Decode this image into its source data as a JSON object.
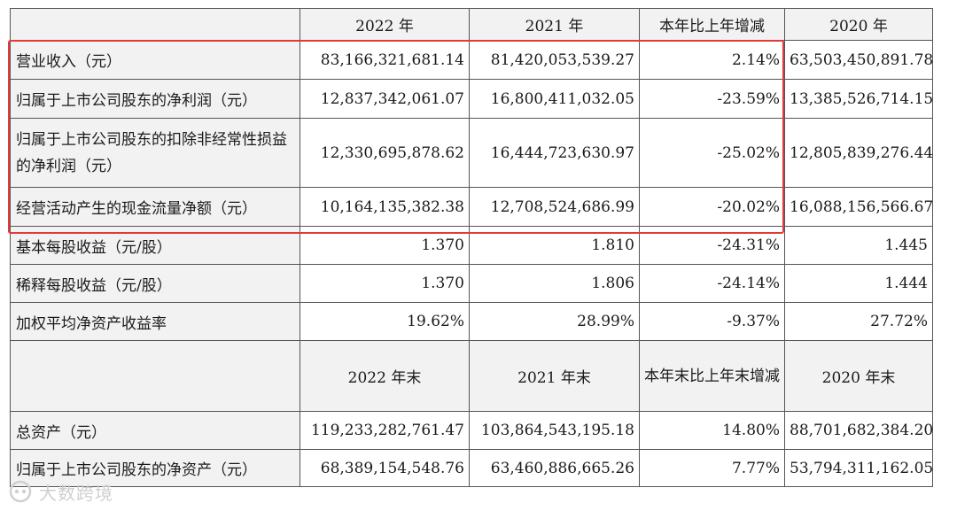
{
  "table": {
    "header1": {
      "c1": "2022 年",
      "c2": "2021 年",
      "c3": "本年比上年增减",
      "c4": "2020 年"
    },
    "rows1": [
      {
        "label": "营业收入（元）",
        "v2022": "83,166,321,681.14",
        "v2021": "81,420,053,539.27",
        "change": "2.14%",
        "v2020": "63,503,450,891.78"
      },
      {
        "label": "归属于上市公司股东的净利润（元）",
        "v2022": "12,837,342,061.07",
        "v2021": "16,800,411,032.05",
        "change": "-23.59%",
        "v2020": "13,385,526,714.15"
      },
      {
        "label": "归属于上市公司股东的扣除非经常性损益的净利润（元）",
        "v2022": "12,330,695,878.62",
        "v2021": "16,444,723,630.97",
        "change": "-25.02%",
        "v2020": "12,805,839,276.44"
      },
      {
        "label": "经营活动产生的现金流量净额（元）",
        "v2022": "10,164,135,382.38",
        "v2021": "12,708,524,686.99",
        "change": "-20.02%",
        "v2020": "16,088,156,566.67"
      },
      {
        "label": "基本每股收益（元/股）",
        "v2022": "1.370",
        "v2021": "1.810",
        "change": "-24.31%",
        "v2020": "1.445"
      },
      {
        "label": "稀释每股收益（元/股）",
        "v2022": "1.370",
        "v2021": "1.806",
        "change": "-24.14%",
        "v2020": "1.444"
      },
      {
        "label": "加权平均净资产收益率",
        "v2022": "19.62%",
        "v2021": "28.99%",
        "change": "-9.37%",
        "v2020": "27.72%"
      }
    ],
    "header2": {
      "c1": "2022 年末",
      "c2": "2021 年末",
      "c3": "本年末比上年末增减",
      "c4": "2020 年末"
    },
    "rows2": [
      {
        "label": "总资产（元）",
        "v2022": "119,233,282,761.47",
        "v2021": "103,864,543,195.18",
        "change": "14.80%",
        "v2020": "88,701,682,384.20"
      },
      {
        "label": "归属于上市公司股东的净资产（元）",
        "v2022": "68,389,154,548.76",
        "v2021": "63,460,886,665.26",
        "change": "7.77%",
        "v2020": "53,794,311,162.05"
      }
    ]
  },
  "watermark": {
    "text": "大数跨境"
  },
  "colors": {
    "highlight": "#e23a3a",
    "label_bg": "#f2f2f2",
    "border": "#555555"
  }
}
